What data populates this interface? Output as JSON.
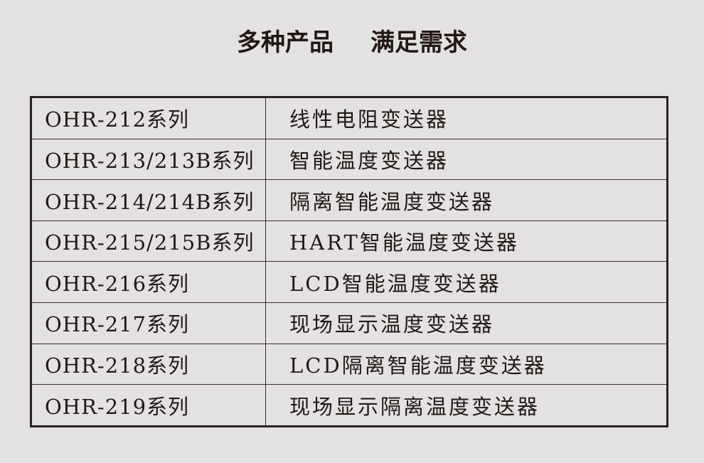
{
  "title": {
    "left": "多种产品",
    "right": "满足需求"
  },
  "rows": [
    {
      "series": "OHR-212系列",
      "product": "线性电阻变送器"
    },
    {
      "series": "OHR-213/213B系列",
      "product": "智能温度变送器"
    },
    {
      "series": "OHR-214/214B系列",
      "product": "隔离智能温度变送器"
    },
    {
      "series": "OHR-215/215B系列",
      "product": "HART智能温度变送器"
    },
    {
      "series": "OHR-216系列",
      "product": "LCD智能温度变送器"
    },
    {
      "series": "OHR-217系列",
      "product": "现场显示温度变送器"
    },
    {
      "series": "OHR-218系列",
      "product": "LCD隔离智能温度变送器"
    },
    {
      "series": "OHR-219系列",
      "product": "现场显示隔离温度变送器"
    }
  ]
}
